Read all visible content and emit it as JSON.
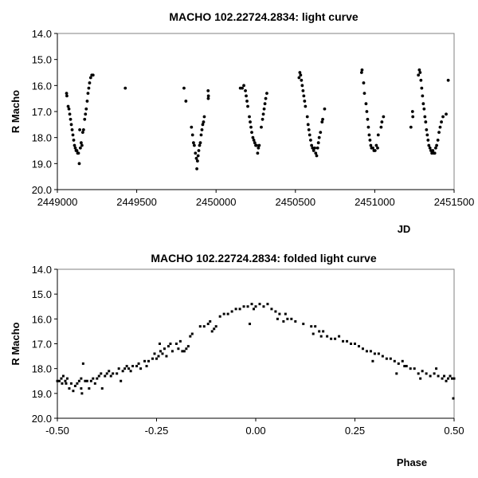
{
  "chart_data": [
    {
      "type": "scatter",
      "title": "MACHO 102.22724.2834: light curve",
      "xlabel": "JD",
      "ylabel": "R Macho",
      "xlim": [
        2449000,
        2451500
      ],
      "ylim": [
        14.0,
        20.0
      ],
      "y_inverted": true,
      "xticks": [
        "2449000",
        "2449500",
        "2450000",
        "2450500",
        "2451000",
        "2451500"
      ],
      "yticks": [
        "14.0",
        "15.0",
        "16.0",
        "17.0",
        "18.0",
        "19.0",
        "20.0"
      ],
      "grid": false,
      "points": [
        [
          2449058,
          16.3
        ],
        [
          2449060,
          16.4
        ],
        [
          2449068,
          16.8
        ],
        [
          2449073,
          16.9
        ],
        [
          2449078,
          17.1
        ],
        [
          2449083,
          17.3
        ],
        [
          2449088,
          17.5
        ],
        [
          2449093,
          17.7
        ],
        [
          2449098,
          17.9
        ],
        [
          2449103,
          18.1
        ],
        [
          2449108,
          18.3
        ],
        [
          2449113,
          18.4
        ],
        [
          2449118,
          18.5
        ],
        [
          2449123,
          18.5
        ],
        [
          2449128,
          18.6
        ],
        [
          2449133,
          18.6
        ],
        [
          2449138,
          19.0
        ],
        [
          2449141,
          17.7
        ],
        [
          2449145,
          18.4
        ],
        [
          2449150,
          18.2
        ],
        [
          2449155,
          18.3
        ],
        [
          2449160,
          17.8
        ],
        [
          2449165,
          17.7
        ],
        [
          2449172,
          17.3
        ],
        [
          2449177,
          17.1
        ],
        [
          2449182,
          16.9
        ],
        [
          2449188,
          16.6
        ],
        [
          2449193,
          16.3
        ],
        [
          2449198,
          16.1
        ],
        [
          2449203,
          15.9
        ],
        [
          2449210,
          15.7
        ],
        [
          2449217,
          15.6
        ],
        [
          2449225,
          15.6
        ],
        [
          2449428,
          16.1
        ],
        [
          2449798,
          16.1
        ],
        [
          2449810,
          16.6
        ],
        [
          2449845,
          17.6
        ],
        [
          2449852,
          17.9
        ],
        [
          2449858,
          18.2
        ],
        [
          2449863,
          18.3
        ],
        [
          2449870,
          18.6
        ],
        [
          2449876,
          18.8
        ],
        [
          2449879,
          19.2
        ],
        [
          2449883,
          18.9
        ],
        [
          2449887,
          18.7
        ],
        [
          2449891,
          18.5
        ],
        [
          2449896,
          18.3
        ],
        [
          2449901,
          18.2
        ],
        [
          2449906,
          17.9
        ],
        [
          2449911,
          17.7
        ],
        [
          2449916,
          17.5
        ],
        [
          2449921,
          17.4
        ],
        [
          2449926,
          17.2
        ],
        [
          2449950,
          16.2
        ],
        [
          2449952,
          16.4
        ],
        [
          2449951,
          16.5
        ],
        [
          2450153,
          16.1
        ],
        [
          2450165,
          16.1
        ],
        [
          2450175,
          16.0
        ],
        [
          2450185,
          16.2
        ],
        [
          2450190,
          16.4
        ],
        [
          2450195,
          16.6
        ],
        [
          2450200,
          16.8
        ],
        [
          2450210,
          17.2
        ],
        [
          2450215,
          17.4
        ],
        [
          2450220,
          17.6
        ],
        [
          2450225,
          17.8
        ],
        [
          2450232,
          18.0
        ],
        [
          2450238,
          18.1
        ],
        [
          2450244,
          18.2
        ],
        [
          2450250,
          18.3
        ],
        [
          2450255,
          18.3
        ],
        [
          2450262,
          18.6
        ],
        [
          2450267,
          18.4
        ],
        [
          2450272,
          18.3
        ],
        [
          2450285,
          17.6
        ],
        [
          2450293,
          17.3
        ],
        [
          2450298,
          17.1
        ],
        [
          2450303,
          16.9
        ],
        [
          2450308,
          16.7
        ],
        [
          2450313,
          16.5
        ],
        [
          2450320,
          16.3
        ],
        [
          2450523,
          15.7
        ],
        [
          2450528,
          15.5
        ],
        [
          2450533,
          15.6
        ],
        [
          2450538,
          15.8
        ],
        [
          2450543,
          16.0
        ],
        [
          2450548,
          16.2
        ],
        [
          2450553,
          16.4
        ],
        [
          2450558,
          16.6
        ],
        [
          2450563,
          16.8
        ],
        [
          2450575,
          17.2
        ],
        [
          2450580,
          17.5
        ],
        [
          2450585,
          17.7
        ],
        [
          2450590,
          17.9
        ],
        [
          2450596,
          18.1
        ],
        [
          2450602,
          18.3
        ],
        [
          2450608,
          18.4
        ],
        [
          2450615,
          18.5
        ],
        [
          2450622,
          18.4
        ],
        [
          2450628,
          18.6
        ],
        [
          2450634,
          18.7
        ],
        [
          2450640,
          18.4
        ],
        [
          2450645,
          18.2
        ],
        [
          2450650,
          18.0
        ],
        [
          2450658,
          17.8
        ],
        [
          2450668,
          17.4
        ],
        [
          2450672,
          17.3
        ],
        [
          2450684,
          16.9
        ],
        [
          2450917,
          15.5
        ],
        [
          2450920,
          15.4
        ],
        [
          2450930,
          15.9
        ],
        [
          2450935,
          16.3
        ],
        [
          2450945,
          16.7
        ],
        [
          2450950,
          17.0
        ],
        [
          2450955,
          17.3
        ],
        [
          2450960,
          17.6
        ],
        [
          2450965,
          17.9
        ],
        [
          2450970,
          18.1
        ],
        [
          2450975,
          18.3
        ],
        [
          2450980,
          18.4
        ],
        [
          2450988,
          18.4
        ],
        [
          2450995,
          18.5
        ],
        [
          2451002,
          18.5
        ],
        [
          2451010,
          18.3
        ],
        [
          2451018,
          18.4
        ],
        [
          2451022,
          17.9
        ],
        [
          2451040,
          17.6
        ],
        [
          2451045,
          17.4
        ],
        [
          2451055,
          17.2
        ],
        [
          2451228,
          17.6
        ],
        [
          2451238,
          17.0
        ],
        [
          2451240,
          17.2
        ],
        [
          2451275,
          15.6
        ],
        [
          2451281,
          15.4
        ],
        [
          2451286,
          15.5
        ],
        [
          2451291,
          15.8
        ],
        [
          2451296,
          16.1
        ],
        [
          2451301,
          16.4
        ],
        [
          2451306,
          16.7
        ],
        [
          2451311,
          16.9
        ],
        [
          2451316,
          17.2
        ],
        [
          2451321,
          17.4
        ],
        [
          2451326,
          17.7
        ],
        [
          2451331,
          17.9
        ],
        [
          2451336,
          18.1
        ],
        [
          2451341,
          18.3
        ],
        [
          2451348,
          18.4
        ],
        [
          2451354,
          18.5
        ],
        [
          2451360,
          18.6
        ],
        [
          2451366,
          18.5
        ],
        [
          2451372,
          18.6
        ],
        [
          2451378,
          18.6
        ],
        [
          2451384,
          18.4
        ],
        [
          2451390,
          18.3
        ],
        [
          2451398,
          18.1
        ],
        [
          2451405,
          17.8
        ],
        [
          2451412,
          17.6
        ],
        [
          2451420,
          17.4
        ],
        [
          2451430,
          17.2
        ],
        [
          2451450,
          17.1
        ],
        [
          2451463,
          15.8
        ]
      ]
    },
    {
      "type": "scatter",
      "title": "MACHO 102.22724.2834: folded light curve",
      "xlabel": "Phase",
      "ylabel": "R Macho",
      "xlim": [
        -0.5,
        0.5
      ],
      "ylim": [
        14.0,
        20.0
      ],
      "y_inverted": true,
      "xticks": [
        "-0.50",
        "-0.25",
        "0.00",
        "0.25",
        "0.50"
      ],
      "yticks": [
        "14.0",
        "15.0",
        "16.0",
        "17.0",
        "18.0",
        "19.0",
        "20.0"
      ],
      "grid": false,
      "points": [
        [
          -0.5,
          18.5
        ],
        [
          -0.495,
          18.5
        ],
        [
          -0.49,
          18.4
        ],
        [
          -0.488,
          18.6
        ],
        [
          -0.485,
          18.3
        ],
        [
          -0.48,
          18.5
        ],
        [
          -0.478,
          18.6
        ],
        [
          -0.475,
          18.4
        ],
        [
          -0.47,
          18.8
        ],
        [
          -0.465,
          18.6
        ],
        [
          -0.46,
          18.9
        ],
        [
          -0.455,
          18.7
        ],
        [
          -0.45,
          18.6
        ],
        [
          -0.445,
          18.5
        ],
        [
          -0.44,
          18.4
        ],
        [
          -0.44,
          18.8
        ],
        [
          -0.438,
          19.0
        ],
        [
          -0.435,
          17.8
        ],
        [
          -0.43,
          18.5
        ],
        [
          -0.425,
          18.5
        ],
        [
          -0.42,
          18.8
        ],
        [
          -0.415,
          18.5
        ],
        [
          -0.41,
          18.4
        ],
        [
          -0.405,
          18.6
        ],
        [
          -0.4,
          18.4
        ],
        [
          -0.395,
          18.3
        ],
        [
          -0.39,
          18.2
        ],
        [
          -0.387,
          18.8
        ],
        [
          -0.38,
          18.3
        ],
        [
          -0.375,
          18.2
        ],
        [
          -0.37,
          18.1
        ],
        [
          -0.365,
          18.3
        ],
        [
          -0.36,
          18.2
        ],
        [
          -0.35,
          18.2
        ],
        [
          -0.345,
          18.0
        ],
        [
          -0.34,
          18.5
        ],
        [
          -0.335,
          18.1
        ],
        [
          -0.33,
          18.0
        ],
        [
          -0.325,
          17.9
        ],
        [
          -0.32,
          18.0
        ],
        [
          -0.315,
          18.1
        ],
        [
          -0.31,
          17.9
        ],
        [
          -0.3,
          17.9
        ],
        [
          -0.295,
          17.8
        ],
        [
          -0.29,
          18.0
        ],
        [
          -0.28,
          17.7
        ],
        [
          -0.275,
          17.9
        ],
        [
          -0.27,
          17.7
        ],
        [
          -0.26,
          17.6
        ],
        [
          -0.255,
          17.4
        ],
        [
          -0.25,
          17.6
        ],
        [
          -0.245,
          17.5
        ],
        [
          -0.242,
          17.0
        ],
        [
          -0.24,
          17.3
        ],
        [
          -0.235,
          17.4
        ],
        [
          -0.23,
          17.2
        ],
        [
          -0.225,
          17.5
        ],
        [
          -0.22,
          17.1
        ],
        [
          -0.215,
          17.0
        ],
        [
          -0.21,
          17.3
        ],
        [
          -0.2,
          17.0
        ],
        [
          -0.195,
          17.2
        ],
        [
          -0.19,
          16.9
        ],
        [
          -0.185,
          17.3
        ],
        [
          -0.18,
          17.3
        ],
        [
          -0.175,
          17.2
        ],
        [
          -0.17,
          17.1
        ],
        [
          -0.165,
          16.7
        ],
        [
          -0.16,
          16.6
        ],
        [
          -0.14,
          16.3
        ],
        [
          -0.13,
          16.3
        ],
        [
          -0.12,
          16.2
        ],
        [
          -0.115,
          16.1
        ],
        [
          -0.11,
          16.5
        ],
        [
          -0.105,
          16.4
        ],
        [
          -0.1,
          16.3
        ],
        [
          -0.09,
          15.9
        ],
        [
          -0.08,
          15.8
        ],
        [
          -0.07,
          15.8
        ],
        [
          -0.06,
          15.7
        ],
        [
          -0.05,
          15.6
        ],
        [
          -0.04,
          15.6
        ],
        [
          -0.03,
          15.5
        ],
        [
          -0.02,
          15.5
        ],
        [
          -0.015,
          16.2
        ],
        [
          -0.01,
          15.4
        ],
        [
          -0.005,
          15.6
        ],
        [
          0.0,
          15.5
        ],
        [
          0.01,
          15.4
        ],
        [
          0.02,
          15.5
        ],
        [
          0.03,
          15.4
        ],
        [
          0.04,
          15.6
        ],
        [
          0.05,
          15.7
        ],
        [
          0.055,
          16.0
        ],
        [
          0.06,
          15.8
        ],
        [
          0.07,
          16.1
        ],
        [
          0.075,
          15.8
        ],
        [
          0.08,
          16.0
        ],
        [
          0.09,
          16.0
        ],
        [
          0.1,
          16.1
        ],
        [
          0.12,
          16.2
        ],
        [
          0.14,
          16.3
        ],
        [
          0.145,
          16.6
        ],
        [
          0.15,
          16.3
        ],
        [
          0.16,
          16.5
        ],
        [
          0.165,
          16.7
        ],
        [
          0.17,
          16.5
        ],
        [
          0.18,
          16.7
        ],
        [
          0.19,
          16.8
        ],
        [
          0.2,
          16.8
        ],
        [
          0.21,
          16.7
        ],
        [
          0.22,
          16.9
        ],
        [
          0.23,
          16.9
        ],
        [
          0.24,
          17.0
        ],
        [
          0.25,
          17.0
        ],
        [
          0.26,
          17.1
        ],
        [
          0.27,
          17.2
        ],
        [
          0.28,
          17.3
        ],
        [
          0.29,
          17.3
        ],
        [
          0.295,
          17.7
        ],
        [
          0.3,
          17.4
        ],
        [
          0.31,
          17.4
        ],
        [
          0.32,
          17.5
        ],
        [
          0.33,
          17.6
        ],
        [
          0.34,
          17.6
        ],
        [
          0.35,
          17.7
        ],
        [
          0.355,
          18.2
        ],
        [
          0.36,
          17.8
        ],
        [
          0.37,
          17.7
        ],
        [
          0.375,
          17.9
        ],
        [
          0.38,
          17.9
        ],
        [
          0.39,
          18.0
        ],
        [
          0.4,
          18.0
        ],
        [
          0.41,
          18.2
        ],
        [
          0.415,
          18.4
        ],
        [
          0.42,
          18.1
        ],
        [
          0.43,
          18.2
        ],
        [
          0.44,
          18.3
        ],
        [
          0.45,
          18.2
        ],
        [
          0.455,
          18.0
        ],
        [
          0.46,
          18.3
        ],
        [
          0.47,
          18.4
        ],
        [
          0.475,
          18.3
        ],
        [
          0.48,
          18.5
        ],
        [
          0.485,
          18.4
        ],
        [
          0.49,
          18.3
        ],
        [
          0.495,
          18.4
        ],
        [
          0.498,
          19.2
        ],
        [
          0.5,
          18.4
        ]
      ]
    }
  ]
}
